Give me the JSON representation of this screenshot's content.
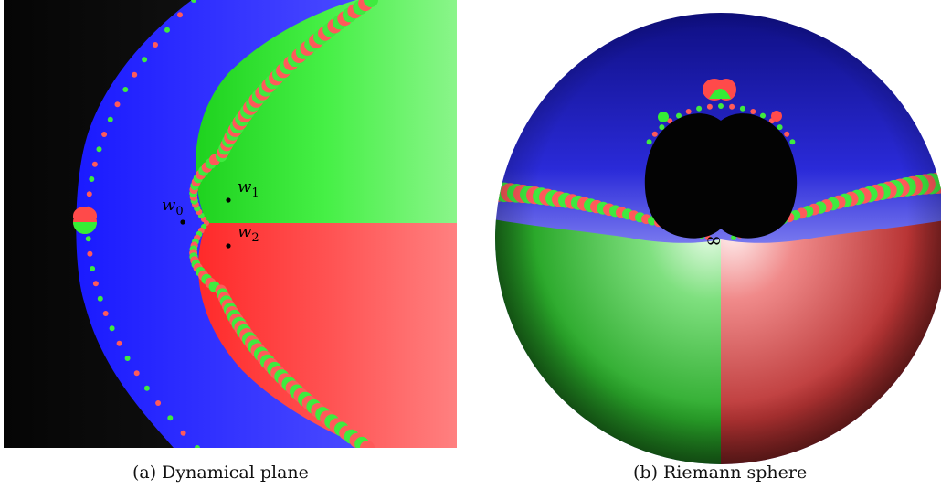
{
  "panels": {
    "left": {
      "tag": "(a)",
      "caption": "Dynamical plane",
      "points": [
        {
          "label": "w",
          "sub": "1"
        },
        {
          "label": "w",
          "sub": "0"
        },
        {
          "label": "w",
          "sub": "2"
        }
      ]
    },
    "right": {
      "tag": "(b)",
      "caption": "Riemann sphere",
      "infinity": "∞"
    }
  },
  "colors": {
    "black_basin": "#0b0b0b",
    "blue_basin": "#2a2aff",
    "green_basin": "#35ee35",
    "red_basin": "#ff4a4a"
  }
}
